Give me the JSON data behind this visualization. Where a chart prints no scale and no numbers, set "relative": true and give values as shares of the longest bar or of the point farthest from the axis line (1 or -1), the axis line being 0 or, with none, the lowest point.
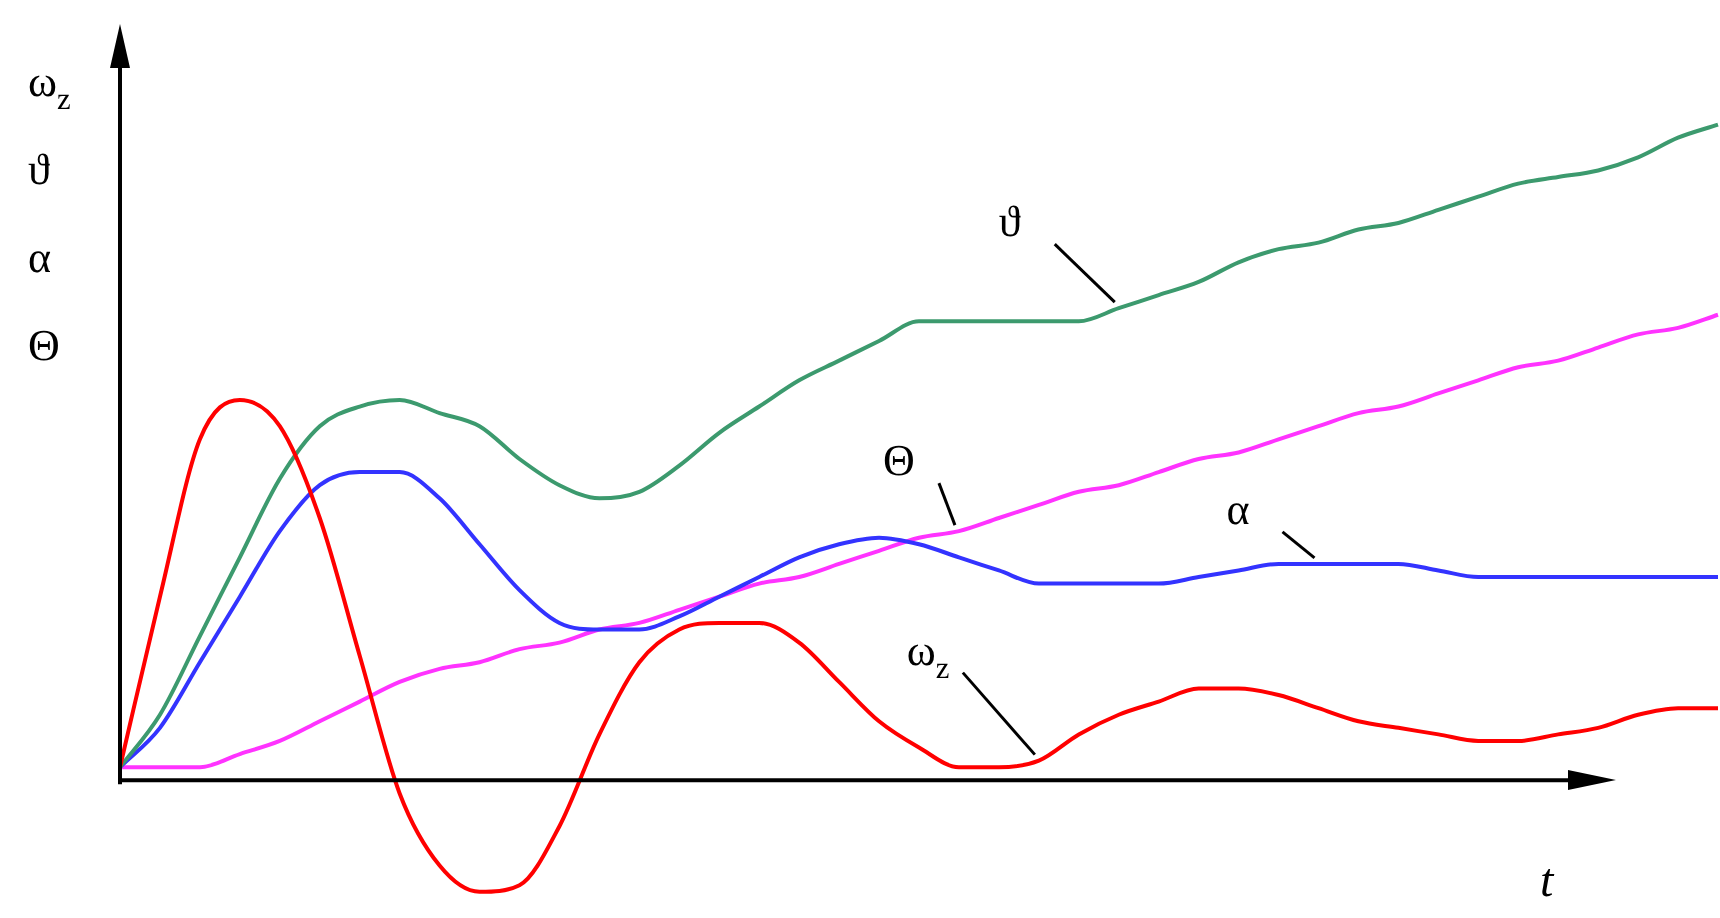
{
  "chart_data": {
    "type": "line",
    "relative": true,
    "xlabel": "t",
    "ylabel": "ω$_{z}$ ϑ α Θ",
    "categories": [
      null,
      null,
      null,
      null,
      null,
      null,
      null,
      null,
      null,
      null,
      null,
      null,
      null,
      null,
      null,
      null,
      null,
      null,
      null,
      null,
      null,
      null,
      null,
      null,
      null,
      null,
      null,
      null,
      null,
      null,
      null,
      null,
      null,
      null,
      null,
      null,
      null,
      null,
      null,
      null,
      null
    ],
    "series": [
      {
        "name": "ω$_{z}$",
        "color": "#ff0000",
        "values": [
          0.02,
          0.28,
          0.52,
          0.58,
          0.54,
          0.4,
          0.19,
          -0.02,
          -0.13,
          -0.17,
          -0.16,
          -0.07,
          0.07,
          0.18,
          0.23,
          0.24,
          0.24,
          0.21,
          0.15,
          0.09,
          0.05,
          0.02,
          0.02,
          0.03,
          0.07,
          0.1,
          0.12,
          0.14,
          0.14,
          0.13,
          0.11,
          0.09,
          0.08,
          0.07,
          0.06,
          0.06,
          0.07,
          0.08,
          0.1,
          0.11,
          0.11
        ]
      },
      {
        "name": "ϑ",
        "color": "#3c9a6e",
        "values": [
          0.02,
          0.1,
          0.22,
          0.34,
          0.46,
          0.54,
          0.57,
          0.58,
          0.56,
          0.54,
          0.49,
          0.45,
          0.43,
          0.44,
          0.48,
          0.53,
          0.57,
          0.61,
          0.64,
          0.67,
          0.7,
          0.7,
          0.7,
          0.7,
          0.7,
          0.72,
          0.74,
          0.76,
          0.79,
          0.81,
          0.82,
          0.84,
          0.85,
          0.87,
          0.89,
          0.91,
          0.92,
          0.93,
          0.95,
          0.98,
          1
        ]
      },
      {
        "name": "α",
        "color": "#3333ff",
        "values": [
          0.02,
          0.08,
          0.18,
          0.28,
          0.38,
          0.45,
          0.47,
          0.47,
          0.43,
          0.36,
          0.29,
          0.24,
          0.23,
          0.23,
          0.25,
          0.28,
          0.31,
          0.34,
          0.36,
          0.37,
          0.36,
          0.34,
          0.32,
          0.3,
          0.3,
          0.3,
          0.3,
          0.31,
          0.32,
          0.33,
          0.33,
          0.33,
          0.33,
          0.32,
          0.31,
          0.31,
          0.31,
          0.31,
          0.31,
          0.31,
          0.31
        ]
      },
      {
        "name": "Θ",
        "color": "#ff33ff",
        "values": [
          0.02,
          0.02,
          0.02,
          0.04,
          0.06,
          0.09,
          0.12,
          0.15,
          0.17,
          0.18,
          0.2,
          0.21,
          0.23,
          0.24,
          0.26,
          0.28,
          0.3,
          0.31,
          0.33,
          0.35,
          0.37,
          0.38,
          0.4,
          0.42,
          0.44,
          0.45,
          0.47,
          0.49,
          0.5,
          0.52,
          0.54,
          0.56,
          0.57,
          0.59,
          0.61,
          0.63,
          0.64,
          0.66,
          0.68,
          0.69,
          0.71
        ]
      }
    ]
  }
}
